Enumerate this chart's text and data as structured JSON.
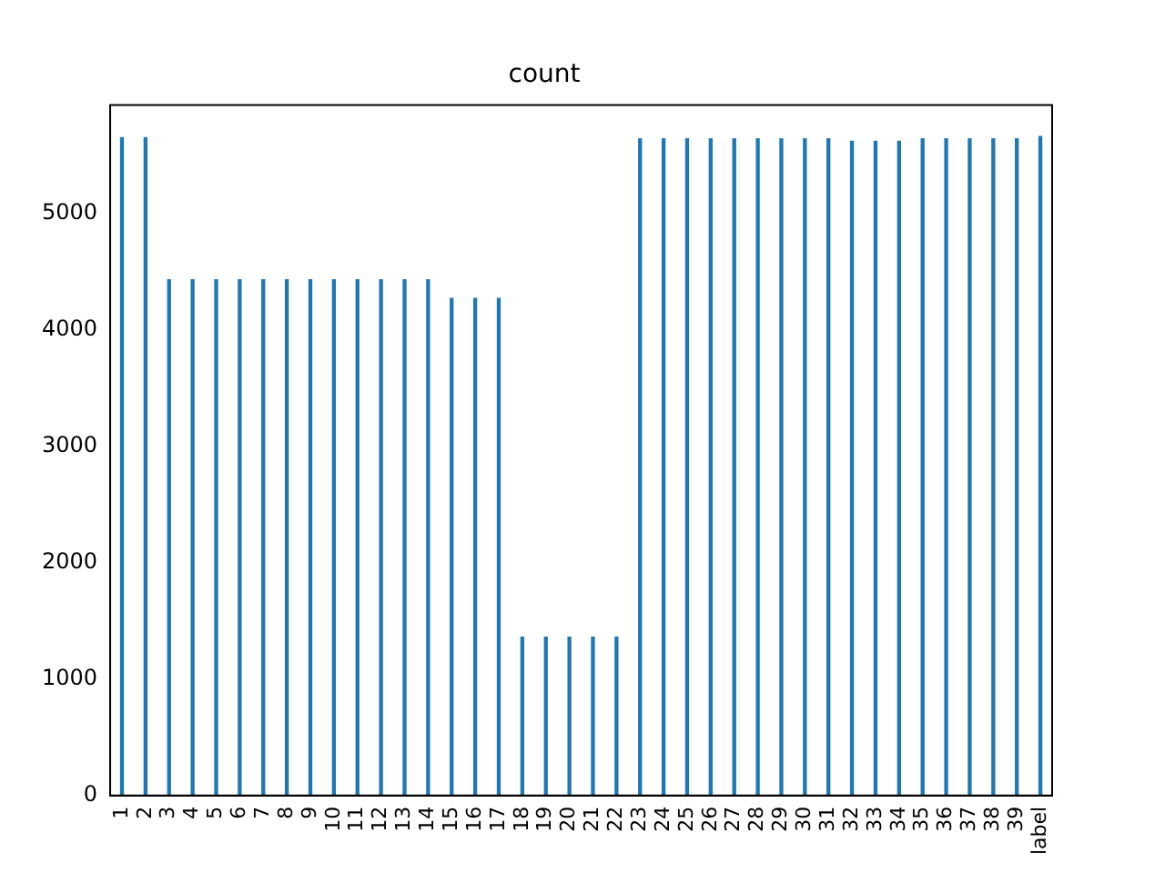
{
  "chart_data": {
    "type": "bar",
    "title": "count",
    "categories": [
      "1",
      "2",
      "3",
      "4",
      "5",
      "6",
      "7",
      "8",
      "9",
      "10",
      "11",
      "12",
      "13",
      "14",
      "15",
      "16",
      "17",
      "18",
      "19",
      "20",
      "21",
      "22",
      "23",
      "24",
      "25",
      "26",
      "27",
      "28",
      "29",
      "30",
      "31",
      "32",
      "33",
      "34",
      "35",
      "36",
      "37",
      "38",
      "39",
      "label"
    ],
    "values": [
      5650,
      5650,
      4430,
      4430,
      4430,
      4430,
      4430,
      4430,
      4430,
      4430,
      4430,
      4430,
      4430,
      4430,
      4270,
      4270,
      4270,
      1360,
      1360,
      1360,
      1360,
      1360,
      5640,
      5640,
      5640,
      5640,
      5640,
      5640,
      5640,
      5640,
      5640,
      5620,
      5620,
      5620,
      5640,
      5640,
      5640,
      5640,
      5640,
      5660
    ],
    "color": "#1f77b4",
    "ylim": [
      0,
      5930
    ],
    "yticks": [
      0,
      1000,
      2000,
      3000,
      4000,
      5000
    ],
    "grid": false,
    "legend": false
  }
}
